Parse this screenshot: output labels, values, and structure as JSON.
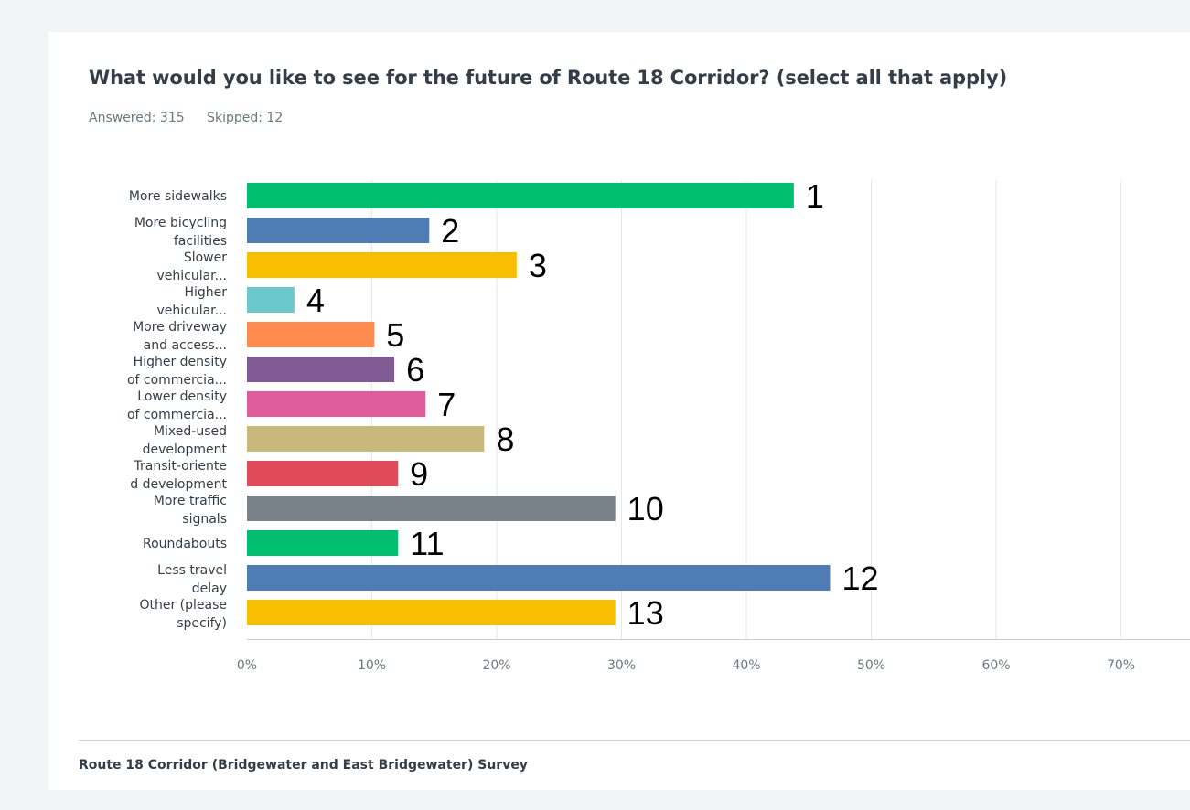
{
  "question": {
    "title": "What would you like to see for the future of Route 18 Corridor? (select all that apply)",
    "answered": "Answered: 315",
    "skipped": "Skipped: 12"
  },
  "footer": {
    "survey_name": "Route 18 Corridor (Bridgewater and East Bridgewater) Survey"
  },
  "chart_data": {
    "type": "bar",
    "orientation": "horizontal",
    "categories": [
      [
        "More sidewalks"
      ],
      [
        "More bicycling",
        "facilities"
      ],
      [
        "Slower",
        "vehicular..."
      ],
      [
        "Higher",
        "vehicular..."
      ],
      [
        "More driveway",
        "and access..."
      ],
      [
        "Higher density",
        "of commercia..."
      ],
      [
        "Lower density",
        "of commercia..."
      ],
      [
        "Mixed-used",
        "development"
      ],
      [
        "Transit-oriente",
        "d development"
      ],
      [
        "More traffic",
        "signals"
      ],
      [
        "Roundabouts"
      ],
      [
        "Less travel",
        "delay"
      ],
      [
        "Other (please",
        "specify)"
      ]
    ],
    "values": [
      43.8,
      14.6,
      21.6,
      3.8,
      10.2,
      11.8,
      14.3,
      19.0,
      12.1,
      29.5,
      12.1,
      46.7,
      29.5
    ],
    "annotations": [
      "1",
      "2",
      "3",
      "4",
      "5",
      "6",
      "7",
      "8",
      "9",
      "10",
      "11",
      "12",
      "13"
    ],
    "colors": [
      "#00bf6f",
      "#507cb6",
      "#f9be00",
      "#6bc8cd",
      "#ff8b4f",
      "#7f5a93",
      "#e05d9c",
      "#c8b87a",
      "#e04b5a",
      "#798189",
      "#00bf6f",
      "#507cb6",
      "#f9be00"
    ],
    "xticks": [
      "0%",
      "10%",
      "20%",
      "30%",
      "40%",
      "50%",
      "60%",
      "70%"
    ],
    "xlim": [
      0,
      75
    ],
    "grid": true
  }
}
